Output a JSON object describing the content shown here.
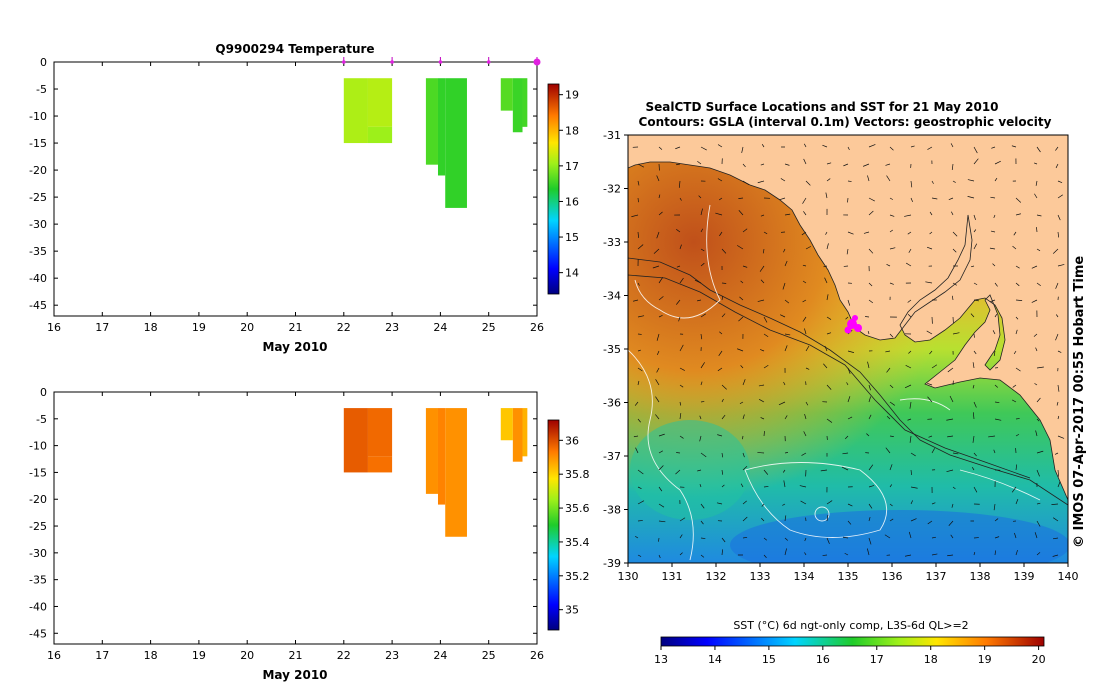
{
  "chart_data": [
    {
      "type": "heatmap",
      "title": "Q9900294  Temperature",
      "xlabel": "May 2010",
      "ylabel": "",
      "x_ticks": [
        "16",
        "17",
        "18",
        "19",
        "20",
        "21",
        "22",
        "23",
        "24",
        "25",
        "26"
      ],
      "y_ticks": [
        "0",
        "-5",
        "-10",
        "-15",
        "-20",
        "-25",
        "-30",
        "-35",
        "-40",
        "-45"
      ],
      "xlim": [
        16,
        26
      ],
      "ylim": [
        -47,
        0
      ],
      "profile_markers": [
        22,
        23,
        24,
        25,
        26
      ],
      "colorbar": {
        "ticks": [
          "14",
          "15",
          "16",
          "17",
          "18",
          "19"
        ],
        "range": [
          13.4,
          19.3
        ]
      },
      "cells": [
        {
          "x0": 22.0,
          "x1": 22.5,
          "d0": 3,
          "d1": 15,
          "value": 17.15
        },
        {
          "x0": 22.5,
          "x1": 23.0,
          "d0": 3,
          "d1": 12,
          "value": 17.2
        },
        {
          "x0": 22.5,
          "x1": 23.0,
          "d0": 12,
          "d1": 15,
          "value": 17.05
        },
        {
          "x0": 23.7,
          "x1": 23.95,
          "d0": 3,
          "d1": 19,
          "value": 16.6
        },
        {
          "x0": 23.95,
          "x1": 24.1,
          "d0": 3,
          "d1": 21,
          "value": 16.45
        },
        {
          "x0": 24.1,
          "x1": 24.55,
          "d0": 3,
          "d1": 27,
          "value": 16.45
        },
        {
          "x0": 25.25,
          "x1": 25.5,
          "d0": 3,
          "d1": 9,
          "value": 16.65
        },
        {
          "x0": 25.5,
          "x1": 25.7,
          "d0": 3,
          "d1": 13,
          "value": 16.5
        },
        {
          "x0": 25.7,
          "x1": 25.8,
          "d0": 3,
          "d1": 12,
          "value": 16.55
        }
      ]
    },
    {
      "type": "heatmap",
      "title": "",
      "xlabel": "May 2010",
      "ylabel": "",
      "x_ticks": [
        "16",
        "17",
        "18",
        "19",
        "20",
        "21",
        "22",
        "23",
        "24",
        "25",
        "26"
      ],
      "y_ticks": [
        "0",
        "-5",
        "-10",
        "-15",
        "-20",
        "-25",
        "-30",
        "-35",
        "-40",
        "-45"
      ],
      "xlim": [
        16,
        26
      ],
      "ylim": [
        -47,
        0
      ],
      "colorbar": {
        "ticks": [
          "35",
          "35.2",
          "35.4",
          "35.6",
          "35.8",
          "36"
        ],
        "range": [
          34.88,
          36.12
        ]
      },
      "cells": [
        {
          "x0": 22.0,
          "x1": 22.5,
          "d0": 3,
          "d1": 15,
          "value": 35.98
        },
        {
          "x0": 22.5,
          "x1": 23.0,
          "d0": 3,
          "d1": 12,
          "value": 35.96
        },
        {
          "x0": 22.5,
          "x1": 23.0,
          "d0": 12,
          "d1": 15,
          "value": 35.95
        },
        {
          "x0": 23.7,
          "x1": 23.95,
          "d0": 3,
          "d1": 19,
          "value": 35.9
        },
        {
          "x0": 23.95,
          "x1": 24.1,
          "d0": 3,
          "d1": 21,
          "value": 35.92
        },
        {
          "x0": 24.1,
          "x1": 24.55,
          "d0": 3,
          "d1": 27,
          "value": 35.9
        },
        {
          "x0": 25.25,
          "x1": 25.5,
          "d0": 3,
          "d1": 9,
          "value": 35.82
        },
        {
          "x0": 25.5,
          "x1": 25.7,
          "d0": 3,
          "d1": 13,
          "value": 35.9
        },
        {
          "x0": 25.7,
          "x1": 25.8,
          "d0": 3,
          "d1": 12,
          "value": 35.85
        }
      ]
    },
    {
      "type": "heatmap",
      "title": "SealCTD Surface Locations and SST for 21 May 2010",
      "subtitle": "Contours: GSLA (interval 0.1m) Vectors: geostrophic velocity",
      "xlabel": "",
      "ylabel": "",
      "x_ticks": [
        "130",
        "131",
        "132",
        "133",
        "134",
        "135",
        "136",
        "137",
        "138",
        "139",
        "140"
      ],
      "y_ticks": [
        "-31",
        "-32",
        "-33",
        "-34",
        "-35",
        "-36",
        "-37",
        "-38",
        "-39"
      ],
      "xlim": [
        130,
        140
      ],
      "ylim": [
        -39,
        -31
      ],
      "seal_location": {
        "lon": 135.1,
        "lat": -34.6
      },
      "side_label": "© IMOS 07-Apr-2017 00:55 Hobart Time",
      "colorbar": {
        "label": "SST (°C) 6d ngt-only comp, L3S-6d QL>=2",
        "ticks": [
          "13",
          "14",
          "15",
          "16",
          "17",
          "18",
          "19",
          "20"
        ],
        "range": [
          13,
          20.1
        ]
      }
    }
  ]
}
